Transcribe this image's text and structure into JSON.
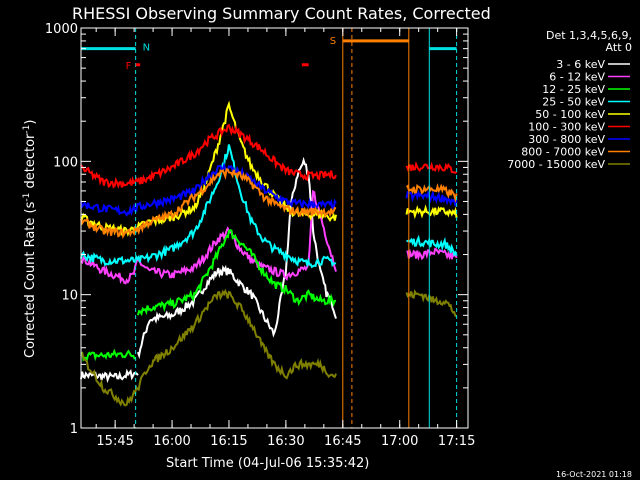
{
  "chart_data": {
    "type": "line",
    "title": "RHESSI Observing Summary Count Rates, Corrected",
    "xlabel": "Start Time (04-Jul-06 15:35:42)",
    "ylabel_main": "Corrected Count Rate (s",
    "ylabel_sup1": "-1",
    "ylabel_mid": " detector",
    "ylabel_sup2": "-1",
    "ylabel_end": ")",
    "yscale": "log",
    "ylim": [
      1,
      1000
    ],
    "xlim_minutes": [
      15.6,
      17.3
    ],
    "x_ticks": [
      "15:45",
      "16:00",
      "16:15",
      "16:30",
      "16:45",
      "17:00",
      "17:15"
    ],
    "x_tick_minutes": [
      15.75,
      16.0,
      16.25,
      16.5,
      16.75,
      17.0,
      17.25
    ],
    "y_ticks": [
      "1",
      "10",
      "100",
      "1000"
    ],
    "y_tick_values": [
      1,
      10,
      100,
      1000
    ],
    "legend_header": [
      "Det 1,3,4,5,6,9,",
      "Att 0"
    ],
    "generated": "16-Oct-2021 01:18",
    "series": [
      {
        "name": "3 - 6 keV",
        "color": "#ffffff",
        "segments": [
          {
            "x": [
              15.6,
              15.76,
              15.85
            ],
            "y": [
              2.5,
              2.4,
              2.6
            ]
          },
          {
            "x": [
              15.85,
              15.9,
              16.0,
              16.1,
              16.15,
              16.2,
              16.25,
              16.3,
              16.35,
              16.4,
              16.45,
              16.5,
              16.52,
              16.55,
              16.58,
              16.6,
              16.62,
              16.65,
              16.68,
              16.7,
              16.72
            ],
            "y": [
              3.5,
              6.5,
              7.0,
              9.0,
              12,
              15,
              15,
              12,
              10,
              7.0,
              5.0,
              15,
              45,
              80,
              100,
              80,
              30,
              15,
              10,
              9,
              7
            ]
          }
        ]
      },
      {
        "name": "6 - 12 keV",
        "color": "#ff40ff",
        "segments": [
          {
            "x": [
              15.6,
              15.7,
              15.8,
              15.83,
              15.85,
              15.9,
              16.0,
              16.1,
              16.15,
              16.2,
              16.25,
              16.3,
              16.35,
              16.4,
              16.45,
              16.5,
              16.55,
              16.6,
              16.62,
              16.65,
              16.7,
              16.72
            ],
            "y": [
              19,
              15,
              13,
              14,
              18,
              15,
              14,
              16,
              20,
              26,
              30,
              22,
              18,
              16,
              15,
              14,
              15,
              16,
              60,
              40,
              20,
              16
            ]
          },
          {
            "x": [
              17.03,
              17.1,
              17.15,
              17.2,
              17.25
            ],
            "y": [
              20,
              20,
              21,
              20,
              19
            ]
          }
        ]
      },
      {
        "name": "12 - 25 keV",
        "color": "#00ff00",
        "segments": [
          {
            "x": [
              15.6,
              15.7,
              15.8,
              15.84
            ],
            "y": [
              3.5,
              3.5,
              3.6,
              3.5
            ]
          },
          {
            "x": [
              15.85,
              15.9,
              16.0,
              16.1,
              16.15,
              16.2,
              16.25,
              16.3,
              16.35,
              16.4,
              16.45,
              16.5,
              16.55,
              16.6,
              16.65,
              16.7,
              16.72
            ],
            "y": [
              7.5,
              8.0,
              8.5,
              10,
              14,
              20,
              30,
              25,
              20,
              15,
              12,
              11,
              9,
              10,
              9,
              9,
              9
            ]
          }
        ]
      },
      {
        "name": "25 - 50 keV",
        "color": "#00ffff",
        "segments": [
          {
            "x": [
              15.6,
              15.7,
              15.8,
              15.85,
              15.9,
              16.0,
              16.1,
              16.15,
              16.2,
              16.25,
              16.3,
              16.35,
              16.4,
              16.45,
              16.5,
              16.55,
              16.6,
              16.65,
              16.7,
              16.72
            ],
            "y": [
              20,
              18,
              18,
              18,
              19,
              22,
              30,
              45,
              70,
              130,
              60,
              35,
              26,
              22,
              20,
              18,
              17,
              18,
              18,
              17
            ]
          },
          {
            "x": [
              17.03,
              17.1,
              17.15,
              17.2,
              17.25
            ],
            "y": [
              25,
              25,
              24,
              24,
              20
            ]
          }
        ]
      },
      {
        "name": "50 - 100 keV",
        "color": "#ffff00",
        "segments": [
          {
            "x": [
              15.6,
              15.7,
              15.8,
              15.85,
              15.9,
              16.0,
              16.1,
              16.15,
              16.2,
              16.25,
              16.3,
              16.35,
              16.4,
              16.45,
              16.5,
              16.55,
              16.6,
              16.65,
              16.7,
              16.72
            ],
            "y": [
              38,
              32,
              30,
              32,
              35,
              38,
              45,
              70,
              130,
              260,
              140,
              90,
              70,
              55,
              45,
              40,
              40,
              40,
              38,
              38
            ]
          },
          {
            "x": [
              17.03,
              17.1,
              17.15,
              17.2,
              17.25
            ],
            "y": [
              42,
              42,
              42,
              42,
              40
            ]
          }
        ]
      },
      {
        "name": "100 - 300 keV",
        "color": "#ff0000",
        "segments": [
          {
            "x": [
              15.6,
              15.7,
              15.8,
              15.85,
              15.9,
              16.0,
              16.1,
              16.15,
              16.2,
              16.25,
              16.3,
              16.35,
              16.4,
              16.45,
              16.5,
              16.55,
              16.6,
              16.65,
              16.7,
              16.72
            ],
            "y": [
              90,
              70,
              68,
              70,
              75,
              90,
              115,
              140,
              160,
              180,
              160,
              140,
              120,
              100,
              85,
              80,
              78,
              78,
              80,
              80
            ]
          },
          {
            "x": [
              17.03,
              17.1,
              17.15,
              17.2,
              17.25
            ],
            "y": [
              90,
              92,
              92,
              90,
              85
            ]
          }
        ]
      },
      {
        "name": "300 - 800 keV",
        "color": "#0000ff",
        "segments": [
          {
            "x": [
              15.6,
              15.7,
              15.8,
              15.85,
              15.9,
              16.0,
              16.1,
              16.15,
              16.2,
              16.25,
              16.3,
              16.35,
              16.4,
              16.45,
              16.5,
              16.55,
              16.6,
              16.65,
              16.7,
              16.72
            ],
            "y": [
              48,
              44,
              42,
              45,
              48,
              52,
              60,
              75,
              88,
              90,
              82,
              72,
              62,
              55,
              50,
              48,
              48,
              47,
              47,
              47
            ]
          },
          {
            "x": [
              17.03,
              17.1,
              17.15,
              17.2,
              17.25
            ],
            "y": [
              55,
              55,
              54,
              53,
              48
            ]
          }
        ]
      },
      {
        "name": "800 - 7000 keV",
        "color": "#ff8000",
        "segments": [
          {
            "x": [
              15.6,
              15.7,
              15.8,
              15.85,
              15.9,
              16.0,
              16.1,
              16.15,
              16.2,
              16.25,
              16.3,
              16.35,
              16.4,
              16.45,
              16.5,
              16.55,
              16.6,
              16.65,
              16.7,
              16.72
            ],
            "y": [
              36,
              30,
              29,
              31,
              35,
              40,
              55,
              65,
              80,
              84,
              78,
              68,
              55,
              48,
              44,
              42,
              42,
              42,
              42,
              42
            ]
          },
          {
            "x": [
              17.03,
              17.1,
              17.15,
              17.2,
              17.25
            ],
            "y": [
              62,
              62,
              62,
              60,
              55
            ]
          }
        ]
      },
      {
        "name": "7000 - 15000 keV",
        "color": "#808000",
        "segments": [
          {
            "x": [
              15.6,
              15.7,
              15.8,
              15.85,
              15.9,
              16.0,
              16.1,
              16.15,
              16.2,
              16.25,
              16.3,
              16.35,
              16.4,
              16.45,
              16.5,
              16.55,
              16.6,
              16.65,
              16.7,
              16.72
            ],
            "y": [
              3.5,
              2.0,
              1.5,
              2.0,
              3.0,
              4.0,
              6.0,
              8.0,
              10,
              10,
              8,
              6,
              4,
              3,
              2.5,
              3,
              3,
              3,
              2.5,
              2.5
            ]
          },
          {
            "x": [
              17.03,
              17.1,
              17.15,
              17.2,
              17.25
            ],
            "y": [
              10,
              10,
              9,
              9,
              7
            ]
          }
        ]
      }
    ],
    "annotations": {
      "n_label": "N",
      "s_label": "S",
      "f_label": "F",
      "night_bars": [
        {
          "x": [
            15.6,
            15.84
          ],
          "y": 700
        },
        {
          "x": [
            17.13,
            17.25
          ],
          "y": 700
        }
      ],
      "night_lines": [
        15.84,
        17.13,
        17.25
      ],
      "saa_bar": {
        "x": [
          16.75,
          17.04
        ],
        "y": 800
      },
      "saa_lines": [
        16.75,
        16.79,
        17.04
      ],
      "flare_marks": [
        {
          "x": [
            15.84,
            15.86
          ],
          "y": 530
        },
        {
          "x": [
            16.57,
            16.6
          ],
          "y": 530
        }
      ]
    }
  }
}
